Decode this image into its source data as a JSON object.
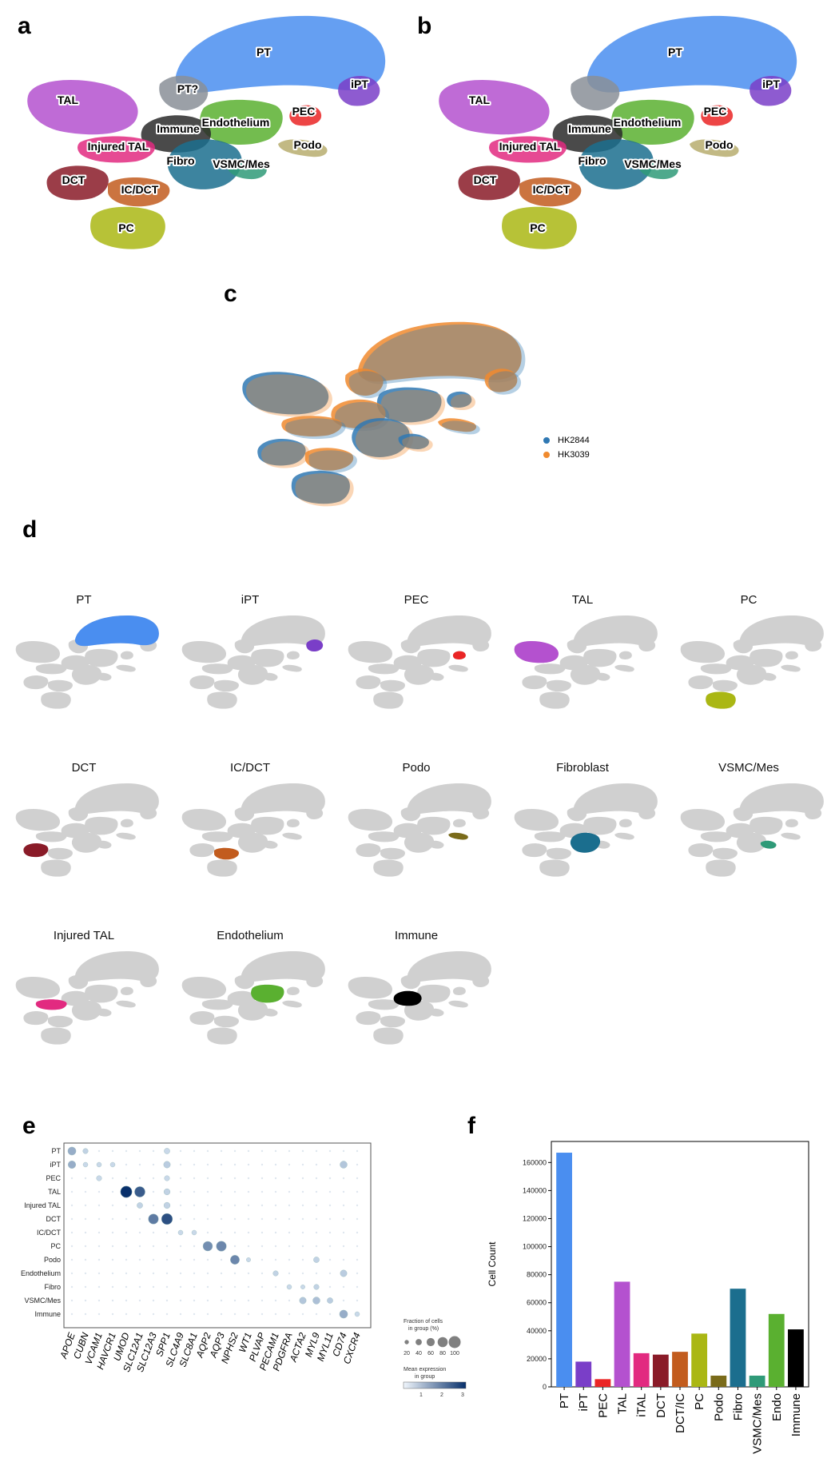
{
  "panel_letters": {
    "a": "a",
    "b": "b",
    "c": "c",
    "d": "d",
    "e": "e",
    "f": "f"
  },
  "panel_a_labels": [
    "PT",
    "iPT",
    "PT?",
    "TAL",
    "PEC",
    "Immune",
    "Endothelium",
    "Podo",
    "Injured TAL",
    "Fibro",
    "VSMC/Mes",
    "DCT",
    "IC/DCT",
    "PC"
  ],
  "panel_b_labels": [
    "PT",
    "iPT",
    "TAL",
    "PEC",
    "Immune",
    "Endothelium",
    "Podo",
    "Injured TAL",
    "Fibro",
    "VSMC/Mes",
    "DCT",
    "IC/DCT",
    "PC"
  ],
  "legend_c": [
    {
      "name": "HK2844",
      "color": "#2f78b3"
    },
    {
      "name": "HK3039",
      "color": "#f08a2e"
    }
  ],
  "celltype_colors": {
    "PT": "#4a8ef0",
    "iPT": "#7a3ec8",
    "PEC": "#ea2525",
    "TAL": "#b451cf",
    "PC": "#aab714",
    "DCT": "#8a1b28",
    "IC/DCT": "#c25c1e",
    "Podo": "#7a6b1a",
    "Fibroblast": "#1b6e8e",
    "VSMC/Mes": "#2f9a78",
    "Injured TAL": "#e22a80",
    "Endothelium": "#5ab030",
    "Immune": "#000000"
  },
  "panel_d_titles": [
    "PT",
    "iPT",
    "PEC",
    "TAL",
    "PC",
    "DCT",
    "IC/DCT",
    "Podo",
    "Fibroblast",
    "VSMC/Mes",
    "Injured TAL",
    "Endothelium",
    "Immune"
  ],
  "panel_e": {
    "rows": [
      "PT",
      "iPT",
      "PEC",
      "TAL",
      "Injured TAL",
      "DCT",
      "IC/DCT",
      "PC",
      "Podo",
      "Endothelium",
      "Fibro",
      "VSMC/Mes",
      "Immune"
    ],
    "genes": [
      "APOE",
      "CUBN",
      "VCAM1",
      "HAVCR1",
      "UMOD",
      "SLC12A1",
      "SLC12A3",
      "SPP1",
      "SLC4A9",
      "SLC8A1",
      "AQP2",
      "AQP3",
      "NPHS2",
      "WT1",
      "PLVAP",
      "PECAM1",
      "PDGFRA",
      "ACTA2",
      "MYL9",
      "MYL11",
      "CD74",
      "CXCR4"
    ],
    "highlights": [
      {
        "row": "PT",
        "gene": "APOE",
        "frac": 60,
        "expr": 1.0
      },
      {
        "row": "PT",
        "gene": "CUBN",
        "frac": 30,
        "expr": 0.4
      },
      {
        "row": "PT",
        "gene": "SPP1",
        "frac": 35,
        "expr": 0.3
      },
      {
        "row": "iPT",
        "gene": "APOE",
        "frac": 55,
        "expr": 1.0
      },
      {
        "row": "iPT",
        "gene": "CUBN",
        "frac": 25,
        "expr": 0.3
      },
      {
        "row": "iPT",
        "gene": "VCAM1",
        "frac": 25,
        "expr": 0.3
      },
      {
        "row": "iPT",
        "gene": "HAVCR1",
        "frac": 25,
        "expr": 0.3
      },
      {
        "row": "iPT",
        "gene": "SPP1",
        "frac": 45,
        "expr": 0.5
      },
      {
        "row": "iPT",
        "gene": "CD74",
        "frac": 50,
        "expr": 0.6
      },
      {
        "row": "PEC",
        "gene": "VCAM1",
        "frac": 30,
        "expr": 0.3
      },
      {
        "row": "PEC",
        "gene": "SPP1",
        "frac": 30,
        "expr": 0.3
      },
      {
        "row": "TAL",
        "gene": "UMOD",
        "frac": 95,
        "expr": 3.0
      },
      {
        "row": "TAL",
        "gene": "SLC12A1",
        "frac": 85,
        "expr": 2.3
      },
      {
        "row": "TAL",
        "gene": "SPP1",
        "frac": 40,
        "expr": 0.4
      },
      {
        "row": "Injured TAL",
        "gene": "SLC12A1",
        "frac": 35,
        "expr": 0.4
      },
      {
        "row": "Injured TAL",
        "gene": "SPP1",
        "frac": 40,
        "expr": 0.4
      },
      {
        "row": "DCT",
        "gene": "SLC12A3",
        "frac": 80,
        "expr": 1.8
      },
      {
        "row": "DCT",
        "gene": "SPP1",
        "frac": 90,
        "expr": 2.5
      },
      {
        "row": "IC/DCT",
        "gene": "SLC4A9",
        "frac": 25,
        "expr": 0.3
      },
      {
        "row": "IC/DCT",
        "gene": "SLC8A1",
        "frac": 25,
        "expr": 0.3
      },
      {
        "row": "PC",
        "gene": "AQP2",
        "frac": 75,
        "expr": 1.5
      },
      {
        "row": "PC",
        "gene": "AQP3",
        "frac": 80,
        "expr": 1.6
      },
      {
        "row": "Podo",
        "gene": "NPHS2",
        "frac": 70,
        "expr": 1.6
      },
      {
        "row": "Podo",
        "gene": "WT1",
        "frac": 20,
        "expr": 0.3
      },
      {
        "row": "Podo",
        "gene": "MYL9",
        "frac": 35,
        "expr": 0.4
      },
      {
        "row": "Endothelium",
        "gene": "PECAM1",
        "frac": 30,
        "expr": 0.4
      },
      {
        "row": "Endothelium",
        "gene": "CD74",
        "frac": 45,
        "expr": 0.5
      },
      {
        "row": "Fibro",
        "gene": "PDGFRA",
        "frac": 25,
        "expr": 0.3
      },
      {
        "row": "Fibro",
        "gene": "ACTA2",
        "frac": 20,
        "expr": 0.3
      },
      {
        "row": "Fibro",
        "gene": "MYL9",
        "frac": 30,
        "expr": 0.4
      },
      {
        "row": "VSMC/Mes",
        "gene": "ACTA2",
        "frac": 45,
        "expr": 0.6
      },
      {
        "row": "VSMC/Mes",
        "gene": "MYL9",
        "frac": 50,
        "expr": 0.7
      },
      {
        "row": "VSMC/Mes",
        "gene": "MYL11",
        "frac": 35,
        "expr": 0.5
      },
      {
        "row": "Immune",
        "gene": "CD74",
        "frac": 60,
        "expr": 1.0
      },
      {
        "row": "Immune",
        "gene": "CXCR4",
        "frac": 25,
        "expr": 0.3
      }
    ],
    "size_legend_title": "Fraction of cells in group (%)",
    "size_legend_values": [
      "20",
      "40",
      "60",
      "80",
      "100"
    ],
    "color_legend_title": "Mean expression in group",
    "color_legend_ticks": [
      "1",
      "2",
      "3"
    ]
  },
  "chart_data": {
    "type": "bar",
    "categories": [
      "PT",
      "iPT",
      "PEC",
      "TAL",
      "iTAL",
      "DCT",
      "DCT/IC",
      "PC",
      "Podo",
      "Fibro",
      "VSMC/Mes",
      "Endo",
      "Immune"
    ],
    "values": [
      167000,
      18000,
      5500,
      75000,
      24000,
      23000,
      25000,
      38000,
      8000,
      70000,
      8000,
      52000,
      41000
    ],
    "colors": [
      "#4a8ef0",
      "#7a3ec8",
      "#ea2525",
      "#b451cf",
      "#e22a80",
      "#8a1b28",
      "#c25c1e",
      "#aab714",
      "#7a6b1a",
      "#1b6e8e",
      "#2f9a78",
      "#5ab030",
      "#000000"
    ],
    "ylabel": "Cell Count",
    "ylim": [
      0,
      175000
    ],
    "yticks": [
      0,
      20000,
      40000,
      60000,
      80000,
      100000,
      120000,
      140000,
      160000
    ]
  }
}
